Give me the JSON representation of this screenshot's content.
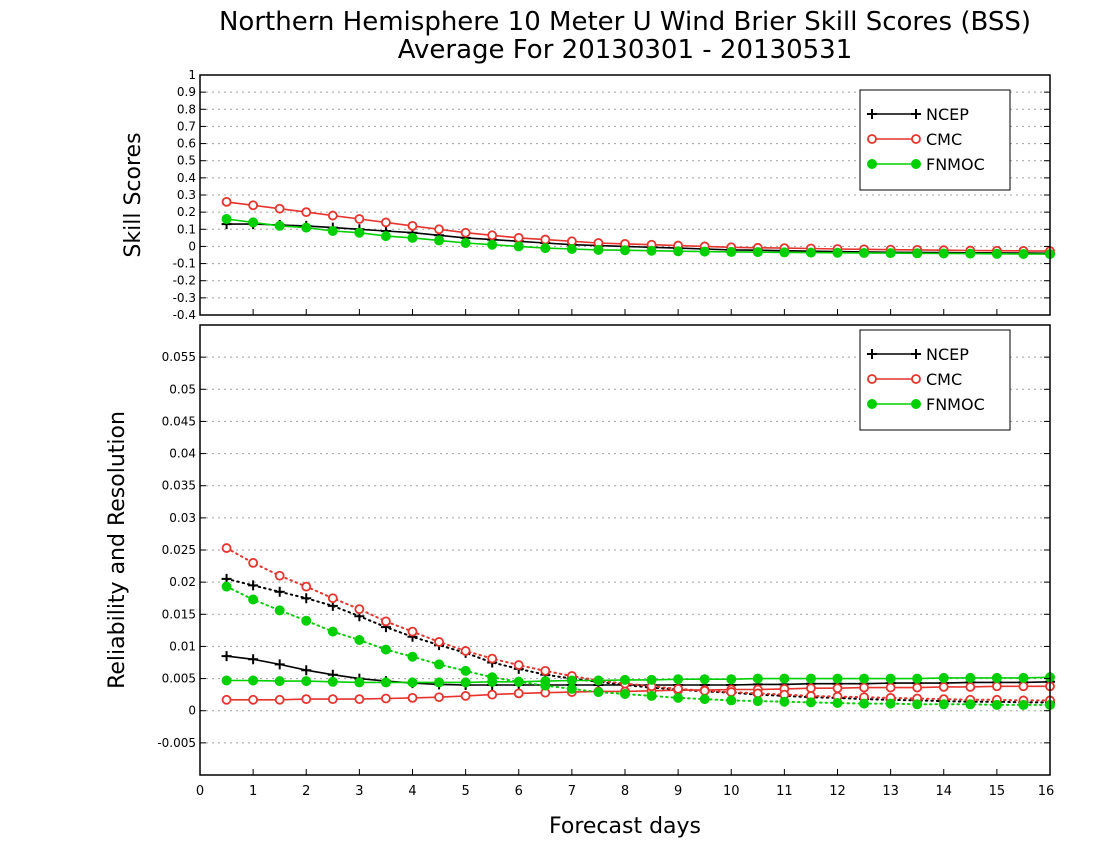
{
  "title": "Northern Hemisphere 10 Meter U Wind Brier Skill Scores (BSS)",
  "subtitle": "Average For 20130301 - 20130531",
  "colors": {
    "NCEP": "#000000",
    "CMC": "#e8322c",
    "FNMOC": "#00d000"
  },
  "legend_names": [
    "NCEP",
    "CMC",
    "FNMOC"
  ],
  "chart_data": [
    {
      "type": "line",
      "panel": "top",
      "ylabel": "Skill Scores",
      "xlabel": "",
      "xlim": [
        0,
        16
      ],
      "ylim": [
        -0.4,
        1
      ],
      "x_ticks": [
        "0",
        "1",
        "2",
        "3",
        "4",
        "5",
        "6",
        "7",
        "8",
        "9",
        "10",
        "11",
        "12",
        "13",
        "14",
        "15",
        "16"
      ],
      "y_ticks": [
        "-0.4",
        "-0.3",
        "-0.2",
        "-0.1",
        "0",
        "0.1",
        "0.2",
        "0.3",
        "0.4",
        "0.5",
        "0.6",
        "0.7",
        "0.8",
        "0.9",
        "1"
      ],
      "y_tick_values": [
        -0.4,
        -0.3,
        -0.2,
        -0.1,
        0,
        0.1,
        0.2,
        0.3,
        0.4,
        0.5,
        0.6,
        0.7,
        0.8,
        0.9,
        1
      ],
      "grid": true,
      "legend_position": "top-right",
      "x": [
        0.5,
        1,
        1.5,
        2,
        2.5,
        3,
        3.5,
        4,
        4.5,
        5,
        5.5,
        6,
        6.5,
        7,
        7.5,
        8,
        8.5,
        9,
        9.5,
        10,
        10.5,
        11,
        11.5,
        12,
        12.5,
        13,
        13.5,
        14,
        14.5,
        15,
        15.5,
        16
      ],
      "series": [
        {
          "name": "NCEP",
          "marker": "plus",
          "linestyle": "solid",
          "values": [
            0.13,
            0.13,
            0.125,
            0.12,
            0.11,
            0.1,
            0.09,
            0.08,
            0.065,
            0.05,
            0.04,
            0.03,
            0.02,
            0.01,
            0.005,
            0.0,
            -0.005,
            -0.01,
            -0.015,
            -0.02,
            -0.022,
            -0.025,
            -0.028,
            -0.03,
            -0.032,
            -0.034,
            -0.035,
            -0.036,
            -0.037,
            -0.038,
            -0.039,
            -0.04
          ]
        },
        {
          "name": "CMC",
          "marker": "open-circle",
          "linestyle": "solid",
          "values": [
            0.26,
            0.24,
            0.22,
            0.2,
            0.18,
            0.16,
            0.14,
            0.12,
            0.1,
            0.08,
            0.065,
            0.05,
            0.04,
            0.03,
            0.02,
            0.015,
            0.01,
            0.005,
            0.0,
            -0.005,
            -0.008,
            -0.01,
            -0.012,
            -0.015,
            -0.017,
            -0.019,
            -0.02,
            -0.022,
            -0.024,
            -0.025,
            -0.026,
            -0.027
          ]
        },
        {
          "name": "FNMOC",
          "marker": "filled-circle",
          "linestyle": "solid",
          "values": [
            0.16,
            0.14,
            0.12,
            0.11,
            0.09,
            0.08,
            0.06,
            0.05,
            0.035,
            0.02,
            0.01,
            0.0,
            -0.01,
            -0.015,
            -0.02,
            -0.022,
            -0.025,
            -0.028,
            -0.03,
            -0.032,
            -0.033,
            -0.035,
            -0.036,
            -0.037,
            -0.038,
            -0.039,
            -0.04,
            -0.041,
            -0.042,
            -0.043,
            -0.044,
            -0.045
          ]
        }
      ]
    },
    {
      "type": "line",
      "panel": "bottom",
      "ylabel": "Reliability and Resolution",
      "xlabel": "Forecast days",
      "xlim": [
        0,
        16
      ],
      "ylim": [
        -0.01,
        0.06
      ],
      "x_ticks": [
        "0",
        "1",
        "2",
        "3",
        "4",
        "5",
        "6",
        "7",
        "8",
        "9",
        "10",
        "11",
        "12",
        "13",
        "14",
        "15",
        "16"
      ],
      "y_ticks": [
        "-0.005",
        "0",
        "0.005",
        "0.01",
        "0.015",
        "0.02",
        "0.025",
        "0.03",
        "0.035",
        "0.04",
        "0.045",
        "0.05",
        "0.055"
      ],
      "y_tick_values": [
        -0.005,
        0,
        0.005,
        0.01,
        0.015,
        0.02,
        0.025,
        0.03,
        0.035,
        0.04,
        0.045,
        0.05,
        0.055
      ],
      "grid": true,
      "legend_position": "top-right",
      "x": [
        0.5,
        1,
        1.5,
        2,
        2.5,
        3,
        3.5,
        4,
        4.5,
        5,
        5.5,
        6,
        6.5,
        7,
        7.5,
        8,
        8.5,
        9,
        9.5,
        10,
        10.5,
        11,
        11.5,
        12,
        12.5,
        13,
        13.5,
        14,
        14.5,
        15,
        15.5,
        16
      ],
      "series": [
        {
          "name": "NCEP reliability",
          "legend_name": "NCEP",
          "marker": "plus",
          "linestyle": "solid",
          "values": [
            0.0085,
            0.008,
            0.0072,
            0.0063,
            0.0056,
            0.005,
            0.0046,
            0.0043,
            0.0041,
            0.004,
            0.004,
            0.004,
            0.004,
            0.004,
            0.004,
            0.004,
            0.004,
            0.004,
            0.004,
            0.004,
            0.0041,
            0.0041,
            0.0042,
            0.0042,
            0.0042,
            0.0043,
            0.0043,
            0.0043,
            0.0044,
            0.0044,
            0.0044,
            0.0045
          ]
        },
        {
          "name": "NCEP resolution",
          "legend_name": "NCEP",
          "marker": "plus",
          "linestyle": "dotted",
          "values": [
            0.0205,
            0.0195,
            0.0185,
            0.0175,
            0.0163,
            0.0147,
            0.013,
            0.0115,
            0.0102,
            0.009,
            0.0075,
            0.0065,
            0.0056,
            0.005,
            0.0045,
            0.004,
            0.0036,
            0.0033,
            0.003,
            0.0028,
            0.0025,
            0.0023,
            0.0021,
            0.002,
            0.0018,
            0.0017,
            0.0016,
            0.0015,
            0.0014,
            0.0014,
            0.0013,
            0.0013
          ]
        },
        {
          "name": "CMC reliability",
          "legend_name": "CMC",
          "marker": "open-circle",
          "linestyle": "solid",
          "values": [
            0.0017,
            0.0017,
            0.0017,
            0.0018,
            0.0018,
            0.0018,
            0.0019,
            0.002,
            0.0021,
            0.0023,
            0.0025,
            0.0027,
            0.0028,
            0.0029,
            0.003,
            0.003,
            0.0031,
            0.0032,
            0.0032,
            0.0033,
            0.0033,
            0.0034,
            0.0035,
            0.0035,
            0.0036,
            0.0036,
            0.0036,
            0.0037,
            0.0037,
            0.0038,
            0.0038,
            0.0038
          ]
        },
        {
          "name": "CMC resolution",
          "legend_name": "CMC",
          "marker": "open-circle",
          "linestyle": "dotted",
          "values": [
            0.0253,
            0.023,
            0.021,
            0.0193,
            0.0175,
            0.0158,
            0.0139,
            0.0123,
            0.0107,
            0.0093,
            0.0081,
            0.0071,
            0.0062,
            0.0054,
            0.0047,
            0.0042,
            0.0038,
            0.0034,
            0.0031,
            0.0029,
            0.0027,
            0.0025,
            0.0023,
            0.0022,
            0.0021,
            0.002,
            0.0019,
            0.0018,
            0.0017,
            0.0017,
            0.0016,
            0.0016
          ]
        },
        {
          "name": "FNMOC reliability",
          "legend_name": "FNMOC",
          "marker": "filled-circle",
          "linestyle": "solid",
          "values": [
            0.0047,
            0.0047,
            0.0046,
            0.0046,
            0.0045,
            0.0044,
            0.0044,
            0.0044,
            0.0044,
            0.0044,
            0.0045,
            0.0045,
            0.0046,
            0.0047,
            0.0047,
            0.0048,
            0.0048,
            0.0049,
            0.0049,
            0.0049,
            0.005,
            0.005,
            0.005,
            0.005,
            0.005,
            0.005,
            0.005,
            0.0051,
            0.0051,
            0.0051,
            0.0051,
            0.0052
          ]
        },
        {
          "name": "FNMOC resolution",
          "legend_name": "FNMOC",
          "marker": "filled-circle",
          "linestyle": "dotted",
          "values": [
            0.0193,
            0.0173,
            0.0156,
            0.014,
            0.0123,
            0.011,
            0.0095,
            0.0084,
            0.0072,
            0.0062,
            0.0052,
            0.0045,
            0.0039,
            0.0034,
            0.0029,
            0.0026,
            0.0023,
            0.002,
            0.0018,
            0.0016,
            0.0015,
            0.0014,
            0.0013,
            0.0012,
            0.0011,
            0.0011,
            0.001,
            0.001,
            0.001,
            0.0009,
            0.0009,
            0.0009
          ]
        }
      ]
    }
  ]
}
